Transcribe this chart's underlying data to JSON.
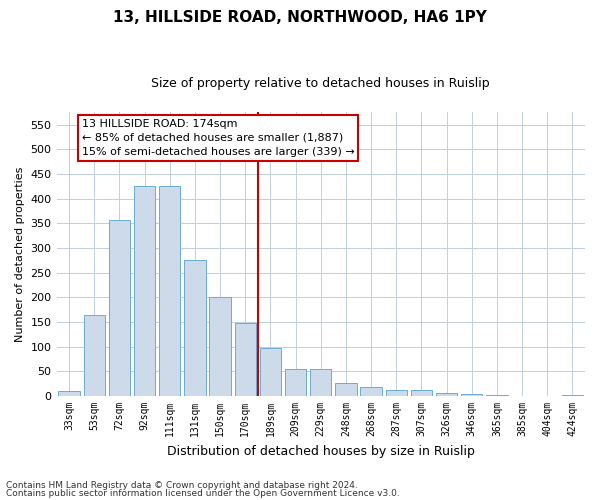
{
  "title": "13, HILLSIDE ROAD, NORTHWOOD, HA6 1PY",
  "subtitle": "Size of property relative to detached houses in Ruislip",
  "xlabel": "Distribution of detached houses by size in Ruislip",
  "ylabel": "Number of detached properties",
  "categories": [
    "33sqm",
    "53sqm",
    "72sqm",
    "92sqm",
    "111sqm",
    "131sqm",
    "150sqm",
    "170sqm",
    "189sqm",
    "209sqm",
    "229sqm",
    "248sqm",
    "268sqm",
    "287sqm",
    "307sqm",
    "326sqm",
    "346sqm",
    "365sqm",
    "385sqm",
    "404sqm",
    "424sqm"
  ],
  "values": [
    10,
    165,
    357,
    425,
    425,
    275,
    200,
    148,
    97,
    55,
    55,
    27,
    18,
    12,
    12,
    6,
    4,
    3,
    1,
    0,
    3
  ],
  "bar_color": "#ccdaea",
  "bar_edge_color": "#6aadd5",
  "vline_x": 7.5,
  "vline_color": "#cc0000",
  "annotation_title": "13 HILLSIDE ROAD: 174sqm",
  "annotation_line1": "← 85% of detached houses are smaller (1,887)",
  "annotation_line2": "15% of semi-detached houses are larger (339) →",
  "annotation_box_facecolor": "#ffffff",
  "annotation_box_edgecolor": "#cc0000",
  "ylim": [
    0,
    575
  ],
  "yticks": [
    0,
    50,
    100,
    150,
    200,
    250,
    300,
    350,
    400,
    450,
    500,
    550
  ],
  "footer1": "Contains HM Land Registry data © Crown copyright and database right 2024.",
  "footer2": "Contains public sector information licensed under the Open Government Licence v3.0.",
  "bg_color": "#ffffff",
  "grid_color": "#bfcfdf",
  "title_fontsize": 11,
  "subtitle_fontsize": 9,
  "xlabel_fontsize": 9,
  "ylabel_fontsize": 8,
  "tick_fontsize": 8,
  "xtick_fontsize": 7,
  "annotation_fontsize": 8,
  "footer_fontsize": 6.5
}
